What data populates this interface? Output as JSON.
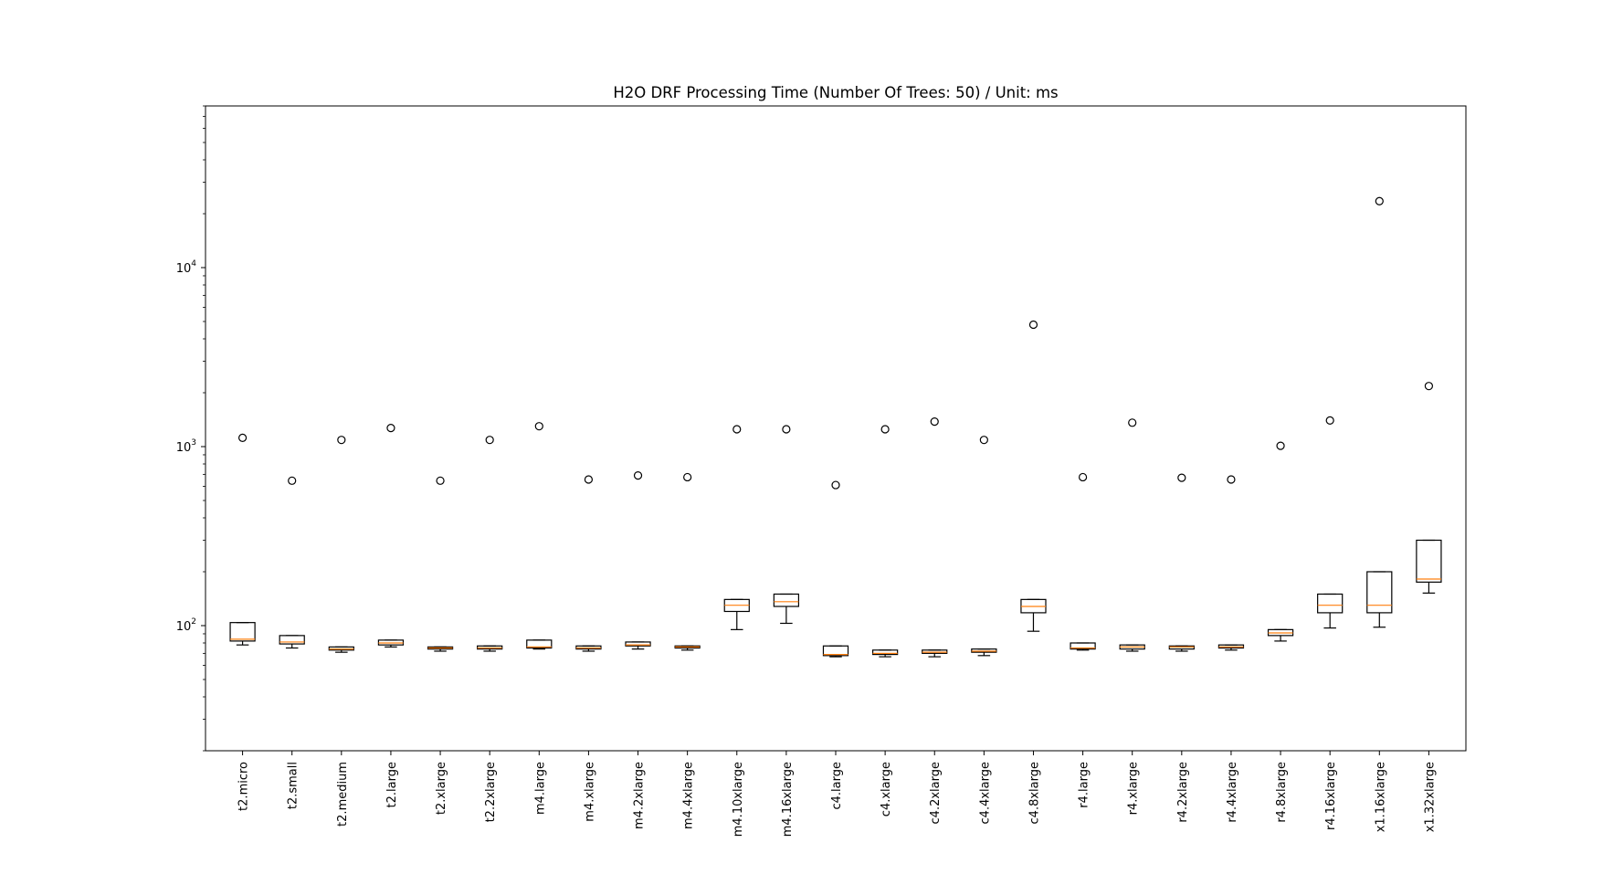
{
  "chart_data": {
    "type": "boxplot",
    "title": "H2O DRF Processing Time (Number Of Trees: 50) / Unit: ms",
    "xlabel": "",
    "ylabel": "",
    "yscale": "log",
    "ylim": [
      20,
      80000
    ],
    "yticks": [
      {
        "value": 100,
        "base": "10",
        "exp": "2"
      },
      {
        "value": 1000,
        "base": "10",
        "exp": "3"
      },
      {
        "value": 10000,
        "base": "10",
        "exp": "4"
      }
    ],
    "grid": false,
    "colors": {
      "box": "#000000",
      "median": "#ff7f0e",
      "whisker": "#000000",
      "flier": "#000000"
    },
    "categories": [
      "t2.micro",
      "t2.small",
      "t2.medium",
      "t2.large",
      "t2.xlarge",
      "t2.2xlarge",
      "m4.large",
      "m4.xlarge",
      "m4.2xlarge",
      "m4.4xlarge",
      "m4.10xlarge",
      "m4.16xlarge",
      "c4.large",
      "c4.xlarge",
      "c4.2xlarge",
      "c4.4xlarge",
      "c4.8xlarge",
      "r4.large",
      "r4.xlarge",
      "r4.2xlarge",
      "r4.4xlarge",
      "r4.8xlarge",
      "r4.16xlarge",
      "x1.16xlarge",
      "x1.32xlarge"
    ],
    "boxes": [
      {
        "whislo": 78,
        "q1": 82,
        "med": 84,
        "q3": 104,
        "whishi": 104,
        "fliers": [
          1120
        ]
      },
      {
        "whislo": 75,
        "q1": 79,
        "med": 81,
        "q3": 88,
        "whishi": 88,
        "fliers": [
          645
        ]
      },
      {
        "whislo": 71,
        "q1": 73,
        "med": 74,
        "q3": 76,
        "whishi": 76,
        "fliers": [
          1090
        ]
      },
      {
        "whislo": 76,
        "q1": 78,
        "med": 80,
        "q3": 83,
        "whishi": 83,
        "fliers": [
          1270
        ]
      },
      {
        "whislo": 72,
        "q1": 74,
        "med": 75,
        "q3": 76,
        "whishi": 76,
        "fliers": [
          645
        ]
      },
      {
        "whislo": 72,
        "q1": 74,
        "med": 75,
        "q3": 77,
        "whishi": 77,
        "fliers": [
          1090
        ]
      },
      {
        "whislo": 74,
        "q1": 75,
        "med": 76,
        "q3": 83,
        "whishi": 83,
        "fliers": [
          1300
        ]
      },
      {
        "whislo": 72,
        "q1": 74,
        "med": 75,
        "q3": 77,
        "whishi": 77,
        "fliers": [
          655
        ]
      },
      {
        "whislo": 74,
        "q1": 77,
        "med": 78,
        "q3": 81,
        "whishi": 81,
        "fliers": [
          690
        ]
      },
      {
        "whislo": 73,
        "q1": 75,
        "med": 76,
        "q3": 77,
        "whishi": 77,
        "fliers": [
          675
        ]
      },
      {
        "whislo": 95,
        "q1": 120,
        "med": 130,
        "q3": 140,
        "whishi": 140,
        "fliers": [
          1250
        ]
      },
      {
        "whislo": 103,
        "q1": 128,
        "med": 136,
        "q3": 150,
        "whishi": 150,
        "fliers": [
          1250
        ]
      },
      {
        "whislo": 67,
        "q1": 68,
        "med": 69,
        "q3": 77,
        "whishi": 77,
        "fliers": [
          610
        ]
      },
      {
        "whislo": 67,
        "q1": 69,
        "med": 70,
        "q3": 73,
        "whishi": 73,
        "fliers": [
          1250
        ]
      },
      {
        "whislo": 67,
        "q1": 70,
        "med": 71,
        "q3": 73,
        "whishi": 73,
        "fliers": [
          1380
        ]
      },
      {
        "whislo": 68,
        "q1": 71,
        "med": 72,
        "q3": 74,
        "whishi": 74,
        "fliers": [
          1090
        ]
      },
      {
        "whislo": 93,
        "q1": 118,
        "med": 128,
        "q3": 140,
        "whishi": 140,
        "fliers": [
          4800
        ]
      },
      {
        "whislo": 73,
        "q1": 74,
        "med": 75,
        "q3": 80,
        "whishi": 80,
        "fliers": [
          675
        ]
      },
      {
        "whislo": 72,
        "q1": 74,
        "med": 76,
        "q3": 78,
        "whishi": 78,
        "fliers": [
          1360
        ]
      },
      {
        "whislo": 72,
        "q1": 74,
        "med": 76,
        "q3": 77,
        "whishi": 77,
        "fliers": [
          670
        ]
      },
      {
        "whislo": 73,
        "q1": 75,
        "med": 76,
        "q3": 78,
        "whishi": 78,
        "fliers": [
          655
        ]
      },
      {
        "whislo": 82,
        "q1": 88,
        "med": 91,
        "q3": 95,
        "whishi": 95,
        "fliers": [
          1010
        ]
      },
      {
        "whislo": 97,
        "q1": 118,
        "med": 130,
        "q3": 150,
        "whishi": 150,
        "fliers": [
          1400
        ]
      },
      {
        "whislo": 98,
        "q1": 118,
        "med": 130,
        "q3": 200,
        "whishi": 200,
        "fliers": [
          23500
        ]
      },
      {
        "whislo": 152,
        "q1": 175,
        "med": 182,
        "q3": 300,
        "whishi": 300,
        "fliers": [
          2180
        ]
      }
    ]
  }
}
